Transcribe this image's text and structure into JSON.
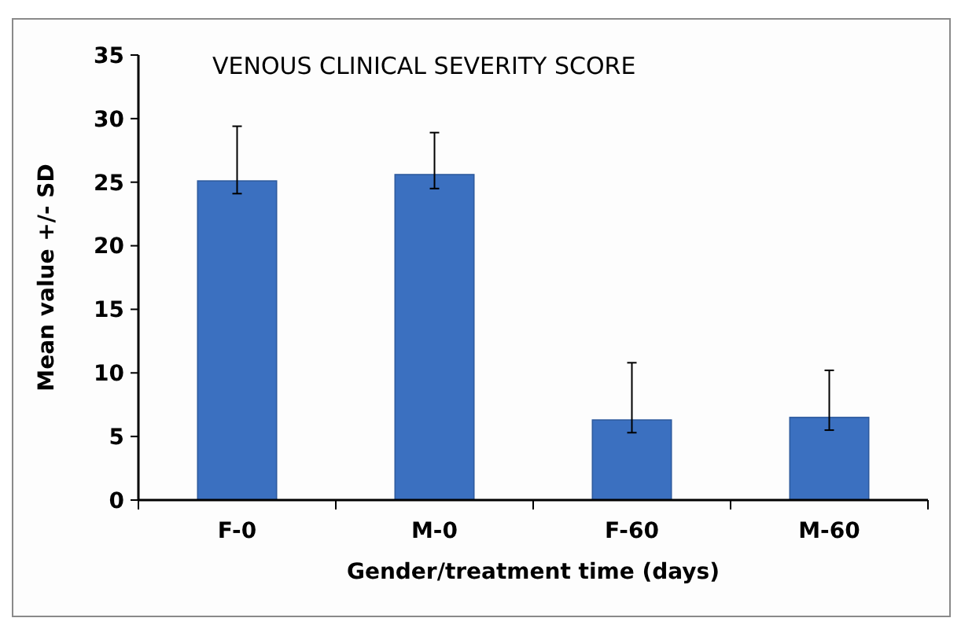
{
  "chart_data": {
    "type": "bar",
    "title": "VENOUS CLINICAL SEVERITY SCORE",
    "xlabel": "Gender/treatment time (days)",
    "ylabel": "Mean value +/- SD",
    "categories": [
      "F-0",
      "M-0",
      "F-60",
      "M-60"
    ],
    "values": [
      25.1,
      25.6,
      6.3,
      6.5
    ],
    "errors": [
      [
        24.1,
        29.4
      ],
      [
        24.5,
        28.9
      ],
      [
        5.3,
        10.8
      ],
      [
        5.5,
        10.2
      ]
    ],
    "color": "#3b70c0",
    "ylim": [
      0,
      35
    ],
    "yticks": [
      0,
      5,
      10,
      15,
      20,
      25,
      30,
      35
    ],
    "grid": false
  }
}
